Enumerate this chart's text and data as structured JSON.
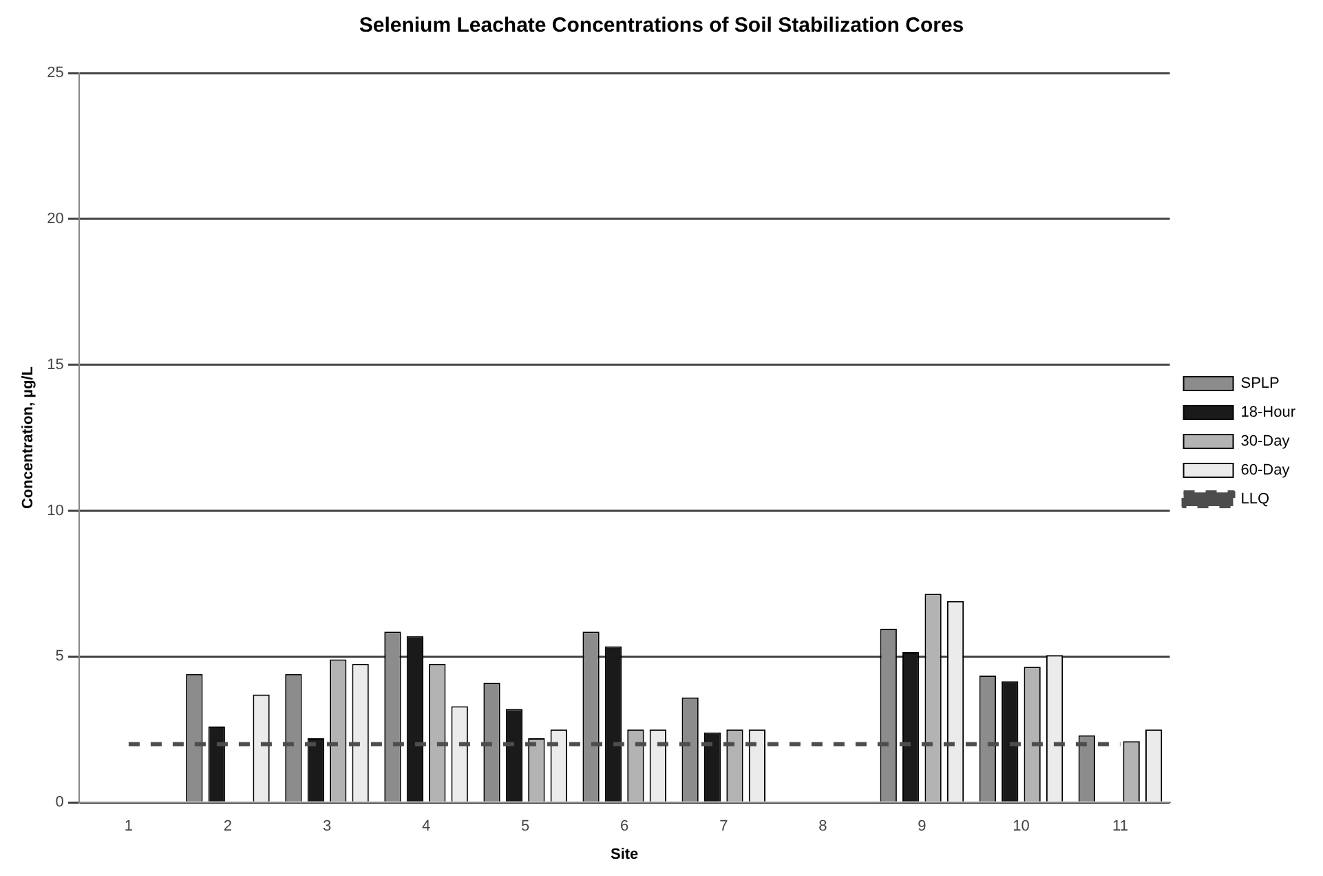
{
  "chart_data": {
    "type": "bar",
    "title": "Selenium Leachate Concentrations of Soil Stabilization Cores",
    "xlabel": "Site",
    "ylabel": "Concentration, µg/L",
    "categories": [
      "1",
      "2",
      "3",
      "4",
      "5",
      "6",
      "7",
      "8",
      "9",
      "10",
      "11"
    ],
    "series": [
      {
        "name": "SPLP",
        "color": "#8c8c8c",
        "values": [
          null,
          4.4,
          4.4,
          5.85,
          4.1,
          5.85,
          3.6,
          null,
          5.95,
          4.35,
          2.3
        ]
      },
      {
        "name": "18-Hour",
        "color": "#1a1a1a",
        "values": [
          null,
          2.6,
          2.2,
          5.7,
          3.2,
          5.35,
          2.4,
          null,
          5.15,
          4.15,
          null
        ]
      },
      {
        "name": "30-Day",
        "color": "#b3b3b3",
        "values": [
          null,
          null,
          4.9,
          4.75,
          2.2,
          2.5,
          2.5,
          null,
          7.15,
          4.65,
          2.1
        ]
      },
      {
        "name": "60-Day",
        "color": "#ebebeb",
        "values": [
          null,
          3.7,
          4.75,
          3.3,
          2.5,
          2.5,
          2.5,
          null,
          6.9,
          5.05,
          2.5
        ]
      },
      {
        "name": "LLQ",
        "type": "line",
        "color": "#4d4d4d",
        "line_style": "dashed",
        "marker": "none",
        "values": [
          2,
          2,
          2,
          2,
          2,
          2,
          2,
          2,
          2,
          2,
          2
        ]
      }
    ],
    "ylim": [
      0,
      25
    ],
    "yticks": [
      0,
      5,
      10,
      15,
      20,
      25
    ],
    "grid": "y",
    "legend": "right"
  }
}
